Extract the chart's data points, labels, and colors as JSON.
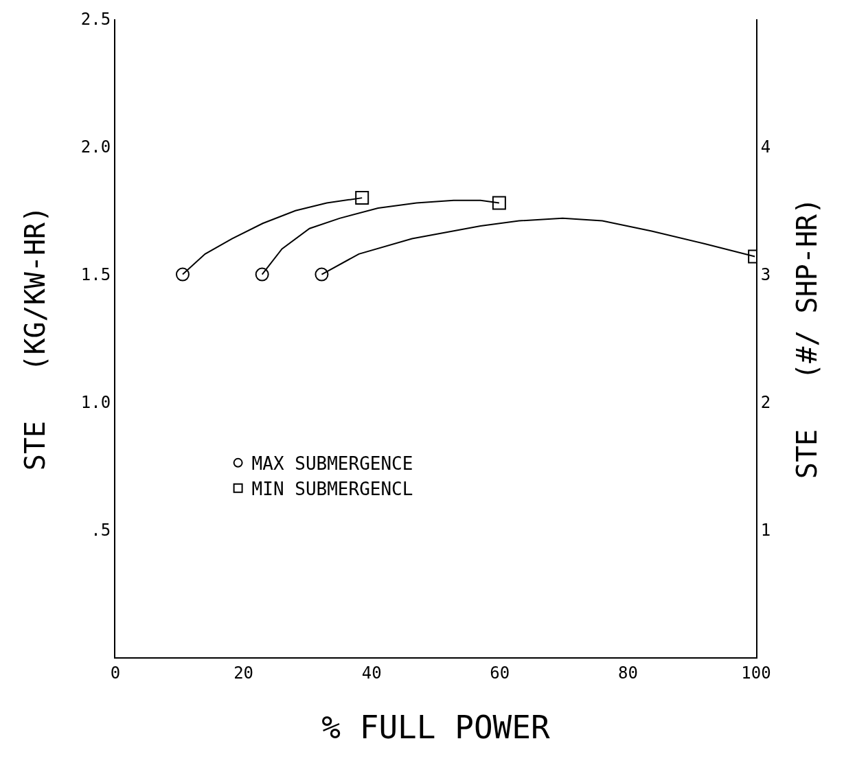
{
  "chart_data": {
    "type": "line",
    "xlabel": "% FULL POWER",
    "ylabel": "STE   (KG/KW-HR)",
    "y2label": "STE   (#/ SHP-HR)",
    "xlim": [
      0,
      100
    ],
    "xticks": [
      0,
      20,
      40,
      60,
      80,
      100
    ],
    "ylim": [
      0,
      2.5
    ],
    "yticks": [
      {
        "value": 0.5,
        "label": ".5"
      },
      {
        "value": 1,
        "label": "1.0"
      },
      {
        "value": 1.5,
        "label": "1.5"
      },
      {
        "value": 2,
        "label": "2.0"
      },
      {
        "value": 2.5,
        "label": "2.5"
      }
    ],
    "y2lim": [
      0,
      5
    ],
    "y2ticks": [
      1,
      2,
      3,
      4
    ],
    "grid": false,
    "legend": "bottom left",
    "series": [
      {
        "color": "#000000",
        "marker": "none",
        "x": [
          10.5,
          14,
          18.2,
          23,
          28.1,
          33,
          38.5
        ],
        "values": [
          1.5,
          1.58,
          1.64,
          1.7,
          1.75,
          1.78,
          1.8
        ]
      },
      {
        "color": "#000000",
        "marker": "none",
        "x": [
          22.9,
          26,
          30.3,
          35,
          41,
          47,
          52.8,
          57,
          59.9
        ],
        "values": [
          1.5,
          1.6,
          1.68,
          1.72,
          1.76,
          1.78,
          1.79,
          1.79,
          1.78
        ]
      },
      {
        "color": "#000000",
        "marker": "none",
        "x": [
          32.2,
          38,
          46.3,
          57,
          63,
          69.8,
          76,
          83.7,
          92,
          99.8
        ],
        "values": [
          1.5,
          1.58,
          1.64,
          1.69,
          1.71,
          1.72,
          1.71,
          1.67,
          1.62,
          1.57
        ]
      },
      {
        "type": "scatter",
        "name": "MAX SUBMERGENCE",
        "color": "#000000",
        "marker": "circle",
        "x": [
          10.5,
          22.9,
          32.2
        ],
        "values": [
          1.5,
          1.5,
          1.5
        ]
      },
      {
        "type": "scatter",
        "name": "MIN SUBMERGENCL",
        "color": "#000000",
        "marker": "square",
        "x": [
          38.5,
          59.9,
          99.8
        ],
        "values": [
          1.8,
          1.78,
          1.57
        ]
      }
    ]
  }
}
